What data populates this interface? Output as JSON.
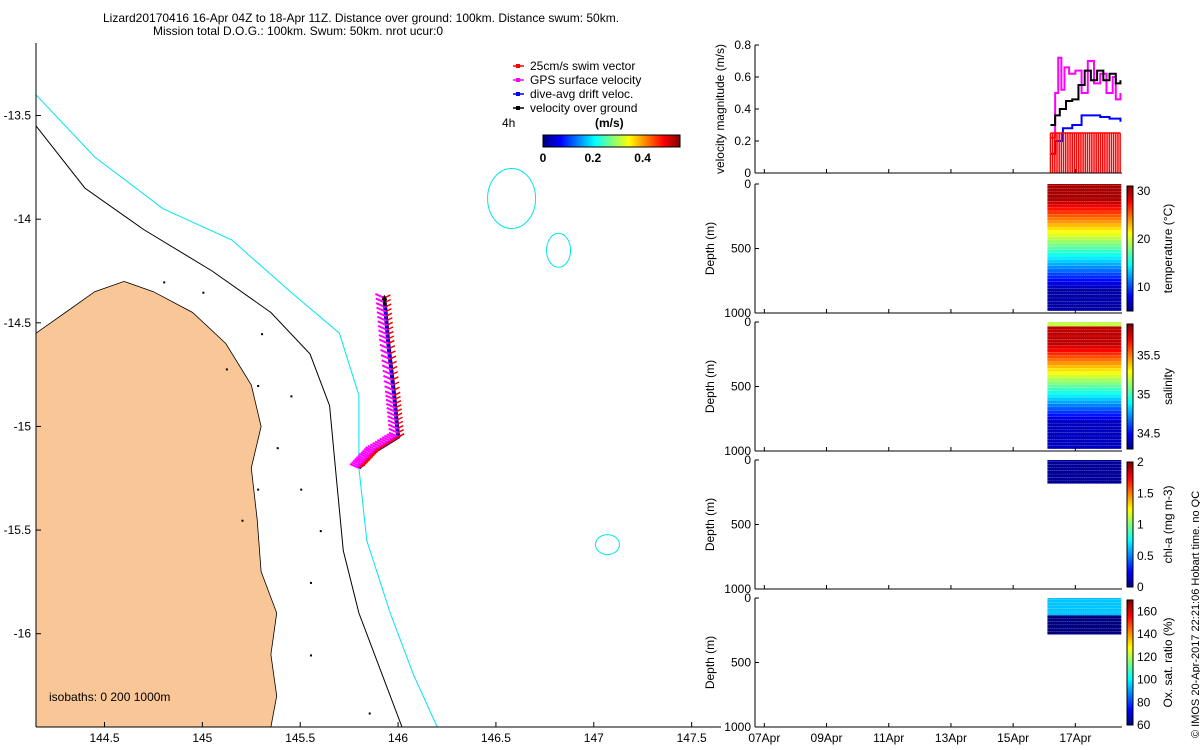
{
  "header": {
    "line1": "Lizard20170416 16-Apr 04Z to 18-Apr 11Z. Distance over ground: 100km. Distance swum: 50km.",
    "line2": "Mission total D.O.G.: 100km. Swum: 50km. nrot ucur:0"
  },
  "map": {
    "x_ticks": [
      "144.5",
      "145",
      "145.5",
      "146",
      "146.5",
      "147",
      "147.5"
    ],
    "y_ticks": [
      "-13.5",
      "-14",
      "-14.5",
      "-15",
      "-15.5",
      "-16"
    ],
    "xlim": [
      144.15,
      147.65
    ],
    "ylim": [
      -16.45,
      -13.15
    ],
    "isobath_label": "isobaths: 0   200  1000m",
    "legend": [
      {
        "label": "25cm/s swim vector",
        "color": "#ff0000"
      },
      {
        "label": "GPS surface velocity",
        "color": "#ff00ff"
      },
      {
        "label": "dive-avg drift veloc.",
        "color": "#0000ff"
      },
      {
        "label": "velocity over ground",
        "color": "#000000"
      }
    ],
    "interval_label": "4h",
    "colorbar": {
      "title": "(m/s)",
      "ticks": [
        "0",
        "0.2",
        "0.4"
      ],
      "range": [
        0,
        0.55
      ]
    },
    "colors": {
      "land": "#f9c697",
      "isobath_200": "#000000",
      "isobath_1000": "#00e5ee",
      "track": "#0000ff"
    }
  },
  "chart_data": [
    {
      "type": "line",
      "ylabel": "velocity magnitude (m/s)",
      "yticks": [
        "0",
        "0.2",
        "0.4",
        "0.6",
        "0.8"
      ],
      "ylim": [
        0,
        0.8
      ],
      "series": [
        {
          "name": "GPS surface velocity",
          "color": "#ff00ff",
          "x": [
            16.2,
            16.35,
            16.45,
            16.55,
            16.65,
            16.8,
            17.0,
            17.2,
            17.4,
            17.6,
            17.8,
            18.0,
            18.2,
            18.3,
            18.45
          ],
          "values": [
            0.22,
            0.5,
            0.72,
            0.52,
            0.66,
            0.62,
            0.64,
            0.5,
            0.7,
            0.56,
            0.62,
            0.5,
            0.6,
            0.46,
            0.5
          ]
        },
        {
          "name": "velocity over ground",
          "color": "#000000",
          "x": [
            16.2,
            16.35,
            16.5,
            16.7,
            16.9,
            17.1,
            17.3,
            17.5,
            17.7,
            17.9,
            18.1,
            18.3,
            18.45
          ],
          "values": [
            0.3,
            0.36,
            0.4,
            0.45,
            0.46,
            0.55,
            0.64,
            0.58,
            0.64,
            0.58,
            0.62,
            0.56,
            0.58
          ]
        },
        {
          "name": "dive-avg drift veloc.",
          "color": "#0000ff",
          "x": [
            16.2,
            16.35,
            16.6,
            16.9,
            17.2,
            17.5,
            17.8,
            18.1,
            18.45
          ],
          "values": [
            0.12,
            0.2,
            0.28,
            0.3,
            0.36,
            0.36,
            0.35,
            0.34,
            0.32
          ]
        },
        {
          "name": "25cm/s swim vector",
          "color": "#ff0000",
          "x": [
            16.2,
            18.45
          ],
          "values": [
            0.25,
            0.25
          ]
        }
      ]
    },
    {
      "type": "scatter",
      "ylabel": "Depth (m)",
      "yticks": [
        "0",
        "500",
        "1000"
      ],
      "ylim": [
        0,
        1000
      ],
      "colorbar": {
        "label": "temperature (°C)",
        "ticks": [
          "10",
          "20",
          "30"
        ],
        "range": [
          5,
          31
        ]
      },
      "profile": {
        "x_start": 16.15,
        "x_end": 18.45,
        "depth_max": 990,
        "surface_value": 30,
        "deep_value": 6
      }
    },
    {
      "type": "scatter",
      "ylabel": "Depth (m)",
      "yticks": [
        "0",
        "500",
        "1000"
      ],
      "ylim": [
        0,
        1000
      ],
      "colorbar": {
        "label": "salinity",
        "ticks": [
          "34.5",
          "35",
          "35.5"
        ],
        "range": [
          34.3,
          35.9
        ]
      },
      "profile": {
        "x_start": 16.15,
        "x_end": 18.45,
        "depth_max": 990,
        "surface_value": 35.2,
        "peak_value": 35.8,
        "deep_value": 34.4
      }
    },
    {
      "type": "scatter",
      "ylabel": "Depth (m)",
      "yticks": [
        "0",
        "500",
        "1000"
      ],
      "ylim": [
        0,
        1000
      ],
      "colorbar": {
        "label": "chl-a (mg m-3)",
        "ticks": [
          "0",
          "0.5",
          "1",
          "1.5",
          "2"
        ],
        "range": [
          0,
          2
        ]
      },
      "profile": {
        "x_start": 16.15,
        "x_end": 18.45,
        "depth_max": 190,
        "value": 0.05
      }
    },
    {
      "type": "scatter",
      "ylabel": "Depth (m)",
      "yticks": [
        "0",
        "500",
        "1000"
      ],
      "ylim": [
        0,
        1000
      ],
      "xticks": [
        "07Apr",
        "09Apr",
        "11Apr",
        "13Apr",
        "15Apr",
        "17Apr"
      ],
      "xtick_values": [
        7,
        9,
        11,
        13,
        15,
        17
      ],
      "xlim": [
        6.7,
        18.5
      ],
      "colorbar": {
        "label": "Ox. sat. ratio (%)",
        "ticks": [
          "60",
          "80",
          "100",
          "120",
          "140",
          "160"
        ],
        "range": [
          60,
          170
        ]
      },
      "profile": {
        "x_start": 16.15,
        "x_end": 18.45,
        "depth_max": 290,
        "surface_value": 95,
        "deep_value": 60
      }
    }
  ],
  "footer": {
    "credit": "© IMOS 20-Apr-2017 22:21:06 Hobart time. no QC"
  }
}
